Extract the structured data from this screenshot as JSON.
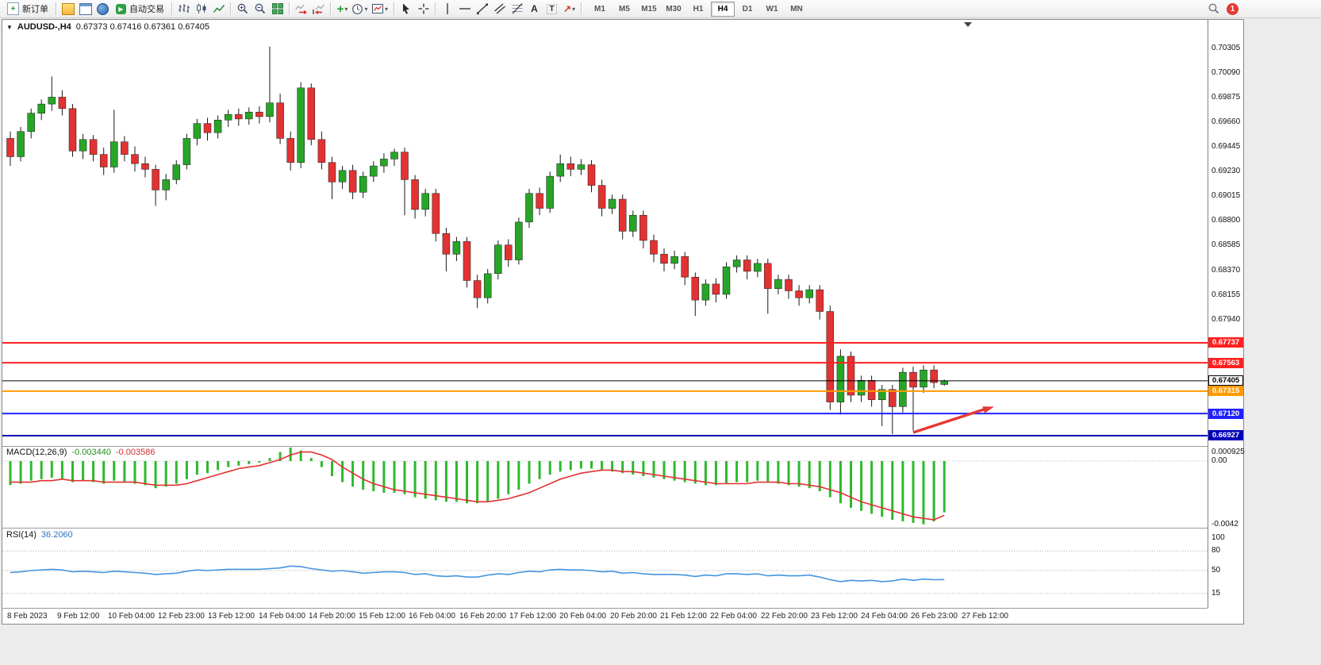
{
  "toolbar": {
    "new_order_label": "新订单",
    "auto_trading_label": "自动交易",
    "timeframes": [
      "M1",
      "M5",
      "M15",
      "M30",
      "H1",
      "H4",
      "D1",
      "W1",
      "MN"
    ],
    "active_timeframe": "H4",
    "notification_count": "1"
  },
  "icons": {
    "caret": "▾",
    "plus": "+",
    "text_tool": "A",
    "label_tool": "T",
    "arrow_tool": "↗",
    "play": "▶",
    "chart_caret": "▼",
    "new_order_glyph": "+"
  },
  "chart": {
    "title_symbol": "AUDUSD-,H4",
    "title_ohlc": "0.67373 0.67416 0.67361 0.67405",
    "bull_color": "#27a527",
    "bear_color": "#e23232",
    "wick_color": "#1a1a1a",
    "price_axis_labels": [
      "0.70305",
      "0.70090",
      "0.69875",
      "0.69660",
      "0.69445",
      "0.69230",
      "0.69015",
      "0.68800",
      "0.68585",
      "0.68370",
      "0.68155",
      "0.67940"
    ],
    "hlines": [
      {
        "price": 0.67737,
        "label": "0.67737",
        "color": "#ff2020",
        "width": 2
      },
      {
        "price": 0.67563,
        "label": "0.67563",
        "color": "#ff2020",
        "width": 2
      },
      {
        "price": 0.67405,
        "label": "0.67405",
        "color": "#000000",
        "width": 1,
        "current": true
      },
      {
        "price": 0.67315,
        "label": "0.67315",
        "color": "#ff9a00",
        "width": 2
      },
      {
        "price": 0.6712,
        "label": "0.67120",
        "color": "#2222ff",
        "width": 2
      },
      {
        "price": 0.66927,
        "label": "0.66927",
        "color": "#0000b8",
        "width": 2
      }
    ],
    "time_labels": [
      "8 Feb 2023",
      "9 Feb 12:00",
      "10 Feb 04:00",
      "12 Feb 23:00",
      "13 Feb 12:00",
      "14 Feb 04:00",
      "14 Feb 20:00",
      "15 Feb 12:00",
      "16 Feb 04:00",
      "16 Feb 20:00",
      "17 Feb 12:00",
      "20 Feb 04:00",
      "20 Feb 20:00",
      "21 Feb 12:00",
      "22 Feb 04:00",
      "22 Feb 20:00",
      "23 Feb 12:00",
      "24 Feb 04:00",
      "26 Feb 23:00",
      "27 Feb 12:00"
    ]
  },
  "macd": {
    "name": "MACD(12,26,9)",
    "value_main": "-0.003440",
    "value_signal": "-0.003586",
    "axis_labels": [
      "0.000925",
      "0.00",
      "-0.0042"
    ],
    "hist_color": "#2eb82e",
    "signal_color": "#e23232",
    "hist": [
      -0.0016,
      -0.0015,
      -0.0013,
      -0.0012,
      -0.0011,
      -0.0012,
      -0.0014,
      -0.0013,
      -0.0014,
      -0.0015,
      -0.0013,
      -0.0014,
      -0.0015,
      -0.0016,
      -0.0018,
      -0.0017,
      -0.0015,
      -0.0012,
      -0.0009,
      -0.0008,
      -0.0006,
      -0.0004,
      -0.0003,
      -0.0002,
      -0.0001,
      0.0002,
      0.0006,
      0.0009,
      0.0007,
      0.0002,
      -0.0004,
      -0.001,
      -0.0014,
      -0.0017,
      -0.0019,
      -0.002,
      -0.0021,
      -0.0021,
      -0.0022,
      -0.0024,
      -0.0025,
      -0.0026,
      -0.0027,
      -0.0027,
      -0.0028,
      -0.0028,
      -0.0027,
      -0.0025,
      -0.0022,
      -0.0019,
      -0.0015,
      -0.0012,
      -0.0009,
      -0.0007,
      -0.0006,
      -0.0005,
      -0.0005,
      -0.0006,
      -0.0007,
      -0.0008,
      -0.0009,
      -0.001,
      -0.0011,
      -0.0012,
      -0.0013,
      -0.0014,
      -0.0015,
      -0.0016,
      -0.0016,
      -0.0015,
      -0.0014,
      -0.0014,
      -0.0013,
      -0.0014,
      -0.0015,
      -0.0016,
      -0.0017,
      -0.0018,
      -0.002,
      -0.0024,
      -0.0028,
      -0.0031,
      -0.0033,
      -0.0035,
      -0.0037,
      -0.0039,
      -0.004,
      -0.0041,
      -0.0042,
      -0.004,
      -0.0034
    ],
    "signal": [
      -0.0014,
      -0.0014,
      -0.0014,
      -0.0013,
      -0.0013,
      -0.0012,
      -0.0013,
      -0.0013,
      -0.0013,
      -0.0014,
      -0.0014,
      -0.0014,
      -0.0014,
      -0.0015,
      -0.0016,
      -0.0016,
      -0.0016,
      -0.0015,
      -0.0013,
      -0.0011,
      -0.0009,
      -0.0007,
      -0.0005,
      -0.0004,
      -0.0003,
      -0.0001,
      0.0001,
      0.0004,
      0.0006,
      0.0006,
      0.0004,
      0.0001,
      -0.0004,
      -0.0008,
      -0.0012,
      -0.0015,
      -0.0017,
      -0.0019,
      -0.002,
      -0.0021,
      -0.0022,
      -0.0023,
      -0.0024,
      -0.0025,
      -0.0026,
      -0.0027,
      -0.0027,
      -0.0026,
      -0.0025,
      -0.0023,
      -0.0021,
      -0.0018,
      -0.0015,
      -0.0012,
      -0.001,
      -0.0008,
      -0.0007,
      -0.0006,
      -0.0006,
      -0.0007,
      -0.0007,
      -0.0008,
      -0.0009,
      -0.001,
      -0.0011,
      -0.0012,
      -0.0013,
      -0.0014,
      -0.0015,
      -0.0015,
      -0.0015,
      -0.0015,
      -0.0014,
      -0.0014,
      -0.0014,
      -0.0015,
      -0.0015,
      -0.0016,
      -0.0017,
      -0.0019,
      -0.0021,
      -0.0024,
      -0.0027,
      -0.0029,
      -0.0031,
      -0.0033,
      -0.0035,
      -0.0037,
      -0.0038,
      -0.0039,
      -0.0036
    ]
  },
  "rsi": {
    "name": "RSI(14)",
    "value": "36.2060",
    "axis_labels": [
      "100",
      "80",
      "50",
      "15"
    ],
    "levels": [
      80,
      50,
      15
    ],
    "line_color": "#4596e0",
    "values": [
      47,
      48,
      50,
      51,
      52,
      51,
      48,
      49,
      48,
      47,
      49,
      48,
      47,
      46,
      44,
      45,
      46,
      49,
      51,
      50,
      51,
      52,
      52,
      52,
      52,
      53,
      54,
      57,
      56,
      53,
      51,
      49,
      50,
      48,
      46,
      47,
      48,
      48,
      47,
      44,
      45,
      42,
      41,
      42,
      40,
      40,
      43,
      45,
      44,
      47,
      49,
      48,
      51,
      52,
      51,
      51,
      50,
      48,
      49,
      46,
      47,
      45,
      44,
      44,
      44,
      43,
      41,
      43,
      42,
      45,
      45,
      44,
      45,
      42,
      43,
      42,
      42,
      43,
      40,
      36,
      33,
      35,
      34,
      35,
      33,
      34,
      37,
      35,
      37,
      36,
      36.2
    ]
  },
  "chart_data": {
    "type": "candlestick",
    "symbol": "AUDUSD",
    "timeframe": "H4",
    "candles": [
      [
        0.6952,
        0.6958,
        0.6928,
        0.6936
      ],
      [
        0.6936,
        0.6962,
        0.6932,
        0.6958
      ],
      [
        0.6958,
        0.6978,
        0.6952,
        0.6974
      ],
      [
        0.6974,
        0.6986,
        0.6968,
        0.6982
      ],
      [
        0.6982,
        0.7006,
        0.6976,
        0.6988
      ],
      [
        0.6988,
        0.6994,
        0.6972,
        0.6978
      ],
      [
        0.6978,
        0.6982,
        0.6936,
        0.6941
      ],
      [
        0.6941,
        0.6956,
        0.6934,
        0.6951
      ],
      [
        0.6951,
        0.6955,
        0.6932,
        0.6938
      ],
      [
        0.6938,
        0.6944,
        0.692,
        0.6927
      ],
      [
        0.6927,
        0.6977,
        0.6922,
        0.6949
      ],
      [
        0.6949,
        0.6954,
        0.6932,
        0.6938
      ],
      [
        0.6938,
        0.6945,
        0.6923,
        0.693
      ],
      [
        0.693,
        0.6936,
        0.6918,
        0.6925
      ],
      [
        0.6925,
        0.6929,
        0.6893,
        0.6907
      ],
      [
        0.6907,
        0.6921,
        0.6898,
        0.6916
      ],
      [
        0.6916,
        0.6933,
        0.6912,
        0.6929
      ],
      [
        0.6929,
        0.6956,
        0.6925,
        0.6952
      ],
      [
        0.6952,
        0.6969,
        0.6946,
        0.6965
      ],
      [
        0.6965,
        0.697,
        0.695,
        0.6957
      ],
      [
        0.6957,
        0.6972,
        0.6952,
        0.6968
      ],
      [
        0.6968,
        0.6977,
        0.6962,
        0.6973
      ],
      [
        0.6973,
        0.6978,
        0.6963,
        0.6969
      ],
      [
        0.6969,
        0.6979,
        0.6964,
        0.6975
      ],
      [
        0.6975,
        0.698,
        0.6965,
        0.6971
      ],
      [
        0.6971,
        0.7032,
        0.6966,
        0.6983
      ],
      [
        0.6983,
        0.6991,
        0.6947,
        0.6952
      ],
      [
        0.6952,
        0.6958,
        0.6924,
        0.6931
      ],
      [
        0.6931,
        0.7001,
        0.6926,
        0.6996
      ],
      [
        0.6996,
        0.7,
        0.6946,
        0.6951
      ],
      [
        0.6951,
        0.6958,
        0.6925,
        0.6931
      ],
      [
        0.6931,
        0.6936,
        0.6899,
        0.6914
      ],
      [
        0.6914,
        0.6928,
        0.6908,
        0.6924
      ],
      [
        0.6924,
        0.6929,
        0.6899,
        0.6905
      ],
      [
        0.6905,
        0.6923,
        0.69,
        0.6919
      ],
      [
        0.6919,
        0.6932,
        0.6914,
        0.6928
      ],
      [
        0.6928,
        0.6939,
        0.6922,
        0.6934
      ],
      [
        0.6934,
        0.6943,
        0.6928,
        0.694
      ],
      [
        0.694,
        0.6944,
        0.6885,
        0.6916
      ],
      [
        0.6916,
        0.692,
        0.6882,
        0.689
      ],
      [
        0.689,
        0.6908,
        0.6884,
        0.6904
      ],
      [
        0.6904,
        0.6908,
        0.6862,
        0.6869
      ],
      [
        0.6869,
        0.6874,
        0.6836,
        0.6851
      ],
      [
        0.6851,
        0.6866,
        0.6845,
        0.6862
      ],
      [
        0.6862,
        0.6866,
        0.6822,
        0.6828
      ],
      [
        0.6828,
        0.6833,
        0.6804,
        0.6813
      ],
      [
        0.6813,
        0.6838,
        0.6808,
        0.6834
      ],
      [
        0.6834,
        0.6863,
        0.6829,
        0.6859
      ],
      [
        0.6859,
        0.6864,
        0.684,
        0.6846
      ],
      [
        0.6846,
        0.6883,
        0.6842,
        0.6879
      ],
      [
        0.6879,
        0.6908,
        0.6874,
        0.6904
      ],
      [
        0.6904,
        0.6909,
        0.6885,
        0.6891
      ],
      [
        0.6891,
        0.6923,
        0.6887,
        0.6919
      ],
      [
        0.6919,
        0.6938,
        0.6914,
        0.693
      ],
      [
        0.693,
        0.6936,
        0.6919,
        0.6925
      ],
      [
        0.6925,
        0.6934,
        0.692,
        0.6929
      ],
      [
        0.6929,
        0.6933,
        0.6905,
        0.6911
      ],
      [
        0.6911,
        0.6916,
        0.6884,
        0.6891
      ],
      [
        0.6891,
        0.6903,
        0.6886,
        0.6899
      ],
      [
        0.6899,
        0.6903,
        0.6864,
        0.6871
      ],
      [
        0.6871,
        0.6889,
        0.6866,
        0.6885
      ],
      [
        0.6885,
        0.6889,
        0.6856,
        0.6863
      ],
      [
        0.6863,
        0.6868,
        0.6844,
        0.6851
      ],
      [
        0.6851,
        0.6856,
        0.6836,
        0.6843
      ],
      [
        0.6843,
        0.6854,
        0.6838,
        0.6849
      ],
      [
        0.6849,
        0.6853,
        0.6824,
        0.6831
      ],
      [
        0.6831,
        0.6835,
        0.6797,
        0.6811
      ],
      [
        0.6811,
        0.6829,
        0.6806,
        0.6825
      ],
      [
        0.6825,
        0.683,
        0.6809,
        0.6816
      ],
      [
        0.6816,
        0.6844,
        0.6812,
        0.684
      ],
      [
        0.684,
        0.685,
        0.6835,
        0.6846
      ],
      [
        0.6846,
        0.685,
        0.6829,
        0.6836
      ],
      [
        0.6836,
        0.6847,
        0.6831,
        0.6843
      ],
      [
        0.6843,
        0.6847,
        0.6799,
        0.6821
      ],
      [
        0.6821,
        0.6833,
        0.6816,
        0.6829
      ],
      [
        0.6829,
        0.6833,
        0.6812,
        0.6819
      ],
      [
        0.6819,
        0.6824,
        0.6806,
        0.6813
      ],
      [
        0.6813,
        0.6824,
        0.6808,
        0.682
      ],
      [
        0.682,
        0.6824,
        0.6794,
        0.6801
      ],
      [
        0.6801,
        0.6806,
        0.6715,
        0.6722
      ],
      [
        0.6722,
        0.6768,
        0.6711,
        0.6762
      ],
      [
        0.6762,
        0.6766,
        0.6722,
        0.6728
      ],
      [
        0.6728,
        0.6745,
        0.6722,
        0.6741
      ],
      [
        0.6741,
        0.6745,
        0.6718,
        0.6724
      ],
      [
        0.6724,
        0.6737,
        0.6701,
        0.6733
      ],
      [
        0.6733,
        0.6737,
        0.6694,
        0.6718
      ],
      [
        0.6718,
        0.6752,
        0.6713,
        0.6748
      ],
      [
        0.6748,
        0.6753,
        0.6697,
        0.6735
      ],
      [
        0.6735,
        0.6754,
        0.673,
        0.675
      ],
      [
        0.675,
        0.6754,
        0.6734,
        0.6739
      ],
      [
        0.67373,
        0.67416,
        0.67361,
        0.67405
      ]
    ]
  }
}
